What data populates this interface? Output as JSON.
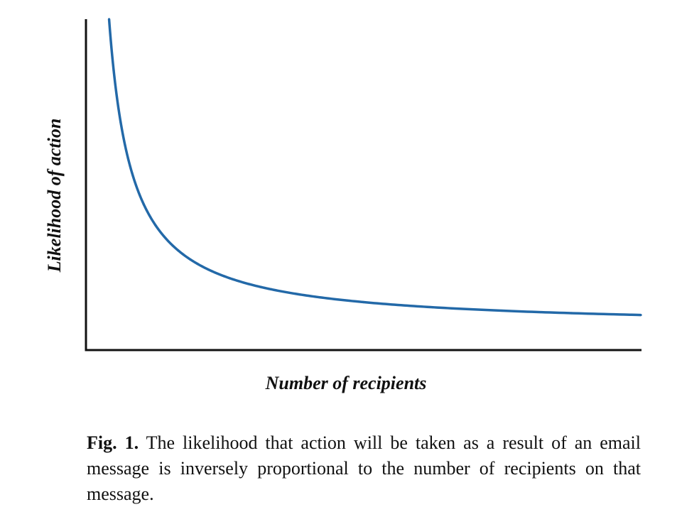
{
  "chart_data": {
    "type": "line",
    "xlabel": "Number of recipients",
    "ylabel": "Likelihood of action",
    "relationship": "inversely proportional",
    "series": [
      {
        "color": "#2369a8",
        "points": [
          [
            1.0,
            25.0
          ],
          [
            1.2,
            20.83
          ],
          [
            1.5,
            16.67
          ],
          [
            2.0,
            12.5
          ],
          [
            2.5,
            10.0
          ],
          [
            3.0,
            8.33
          ],
          [
            4.0,
            6.25
          ],
          [
            5.0,
            5.0
          ],
          [
            6.0,
            4.17
          ],
          [
            7.0,
            3.57
          ],
          [
            8.0,
            3.13
          ],
          [
            10.0,
            2.5
          ],
          [
            12.0,
            2.08
          ],
          [
            15.0,
            1.67
          ],
          [
            18.0,
            1.39
          ],
          [
            21.0,
            1.19
          ],
          [
            24.0,
            1.04
          ]
        ]
      }
    ],
    "xlim": [
      0,
      24
    ],
    "ylim": [
      -1.8,
      25
    ],
    "grid": false,
    "ticks": false
  },
  "caption": {
    "label": "Fig. 1.",
    "text": " The likelihood that action will be taken as a result of an email message is inversely proportional to the number of recipients on that message."
  }
}
